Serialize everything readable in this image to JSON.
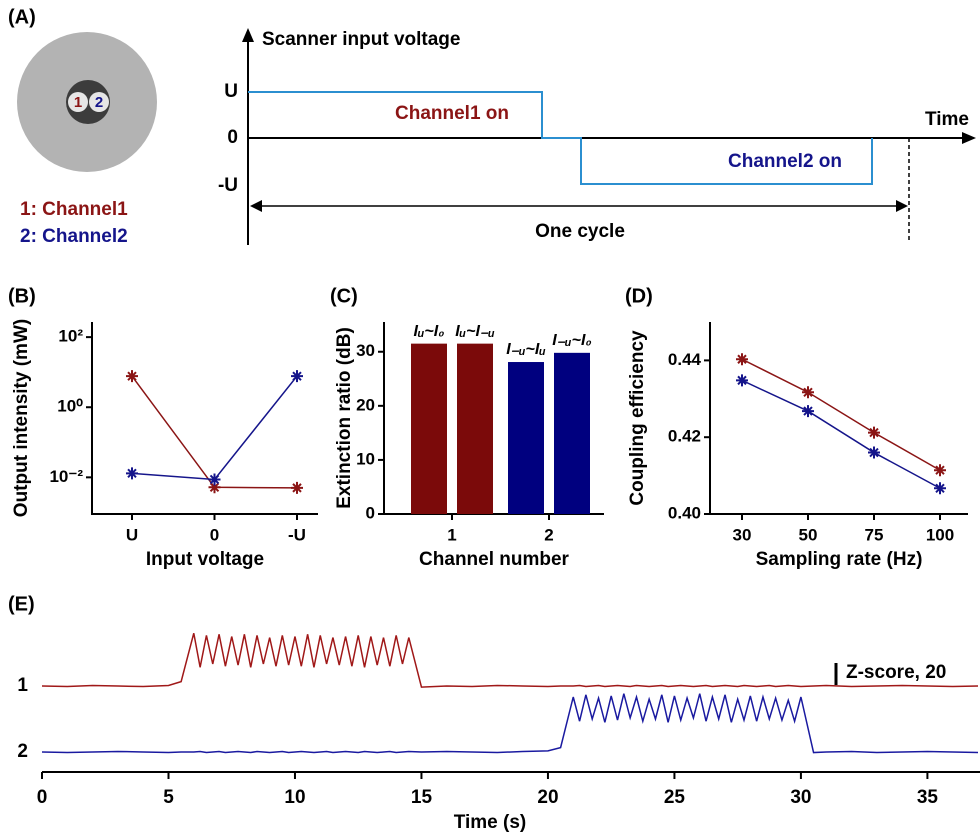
{
  "panel_a": {
    "panel_label": "(A)",
    "y_axis_label": "Scanner input voltage",
    "x_axis_label": "Time",
    "levels": [
      "U",
      "0",
      "-U"
    ],
    "segments": [
      "Channel1 on",
      "Channel2 on"
    ],
    "cycle_label": "One cycle",
    "fiber_cores": [
      "1",
      "2"
    ],
    "legend": [
      "1: Channel1",
      "2: Channel2"
    ]
  },
  "chart_data": [
    {
      "type": "line",
      "panel_label": "(B)",
      "ylabel": "Output intensity (mW)",
      "xlabel": "Input voltage",
      "categories": [
        "U",
        "0",
        "-U"
      ],
      "log_y": true,
      "ylim": [
        0.0009,
        270
      ],
      "yticks": [
        {
          "value": 100,
          "label": "10²"
        },
        {
          "value": 1,
          "label": "10⁰"
        },
        {
          "value": 0.01,
          "label": "10⁻²"
        }
      ],
      "series": [
        {
          "color": "#8b1515",
          "values": [
            7.7,
            0.0052,
            0.005
          ]
        },
        {
          "color": "#15158b",
          "values": [
            0.013,
            0.0087,
            7.7
          ]
        }
      ]
    },
    {
      "type": "bar",
      "panel_label": "(C)",
      "ylabel": "Extinction ratio (dB)",
      "xlabel": "Channel number",
      "categories": [
        "1",
        "2"
      ],
      "colors": [
        "#7b0a0a",
        "#00007f"
      ],
      "bar_labels": [
        [
          "Iᵤ~I₀",
          "Iᵤ~I₋ᵤ"
        ],
        [
          "I₋ᵤ~Iᵤ",
          "I₋ᵤ~I₀"
        ]
      ],
      "values": [
        [
          31.5,
          31.5
        ],
        [
          28.1,
          29.8
        ]
      ],
      "ylim": [
        0,
        35.5
      ],
      "yticks": [
        0,
        10,
        20,
        30
      ]
    },
    {
      "type": "line",
      "panel_label": "(D)",
      "ylabel": "Coupling efficiency",
      "xlabel": "Sampling rate (Hz)",
      "categories": [
        "30",
        "50",
        "75",
        "100"
      ],
      "ylim": [
        0.4,
        0.45
      ],
      "yticks": [
        {
          "value": 0.4,
          "label": "0.40"
        },
        0.42,
        0.44
      ],
      "series": [
        {
          "color": "#8b1515",
          "values": [
            0.4403,
            0.4317,
            0.4212,
            0.4114
          ]
        },
        {
          "color": "#15158b",
          "values": [
            0.4348,
            0.4268,
            0.416,
            0.4067
          ]
        }
      ]
    },
    {
      "type": "trace",
      "panel_label": "(E)",
      "xlabel": "Time (s)",
      "xlim": [
        0,
        37
      ],
      "xticks": [
        0,
        5,
        10,
        15,
        20,
        25,
        30,
        35
      ],
      "scale_bar": {
        "value": 20,
        "label": "Z-score, 20"
      },
      "x": [
        0,
        1,
        2,
        3,
        4,
        5,
        5.5,
        6,
        6.25,
        6.5,
        6.75,
        7,
        7.25,
        7.5,
        7.75,
        8,
        8.25,
        8.5,
        8.75,
        9,
        9.25,
        9.5,
        9.75,
        10,
        10.25,
        10.5,
        10.75,
        11,
        11.25,
        11.5,
        11.75,
        12,
        12.25,
        12.5,
        12.75,
        13,
        13.25,
        13.5,
        13.75,
        14,
        14.25,
        14.5,
        15,
        16,
        17,
        18,
        19,
        20,
        20.5,
        21,
        21.25,
        21.5,
        21.75,
        22,
        22.25,
        22.5,
        22.75,
        23,
        23.25,
        23.5,
        23.75,
        24,
        24.25,
        24.5,
        24.75,
        25,
        25.25,
        25.5,
        25.75,
        26,
        26.25,
        26.5,
        26.75,
        27,
        27.25,
        27.5,
        27.75,
        28,
        28.25,
        28.5,
        28.75,
        29,
        29.25,
        29.5,
        29.75,
        30,
        30.5,
        31,
        32,
        33,
        34,
        35,
        36,
        37
      ],
      "series": [
        {
          "name": "1",
          "color": "#a01818",
          "values": [
            0,
            -0.5,
            0.5,
            0,
            -0.5,
            0.5,
            4,
            48,
            17,
            46,
            20,
            47,
            18,
            45,
            19,
            47,
            17,
            46,
            20,
            44,
            18,
            46,
            19,
            45,
            18,
            47,
            17,
            46,
            20,
            44,
            19,
            45,
            18,
            46,
            17,
            45,
            19,
            44,
            18,
            46,
            20,
            44,
            -1,
            0,
            -0.5,
            0.5,
            0,
            -0.5,
            0,
            0,
            0.5,
            -0.5,
            0,
            0.5,
            -0.5,
            0,
            0.5,
            0,
            -0.5,
            0.5,
            0,
            -0.5,
            0,
            0.5,
            -0.5,
            0,
            0.5,
            0,
            -0.5,
            0,
            0.5,
            -0.5,
            0,
            0.5,
            0,
            -0.5,
            0.5,
            0,
            -0.5,
            0,
            0.5,
            -0.5,
            0,
            0.5,
            0,
            -0.5,
            0,
            0.5,
            -0.5,
            0,
            0.5,
            0,
            -0.5,
            0
          ]
        },
        {
          "name": "2",
          "color": "#1a1aa0",
          "values": [
            0,
            -0.5,
            0,
            0.5,
            0,
            -0.5,
            0,
            0,
            0.5,
            -0.5,
            0,
            0.5,
            -0.5,
            0,
            0.5,
            0,
            -0.5,
            0.5,
            0,
            -0.5,
            0,
            0.5,
            -0.5,
            0,
            0.5,
            0,
            -0.5,
            0,
            0.5,
            -0.5,
            0,
            0.5,
            0,
            -0.5,
            0.5,
            0,
            -0.5,
            0,
            0.5,
            -0.5,
            0,
            0.5,
            0,
            0.5,
            0,
            -0.5,
            0.5,
            1,
            4,
            50,
            28,
            52,
            30,
            49,
            27,
            51,
            29,
            53,
            31,
            50,
            28,
            48,
            30,
            52,
            27,
            51,
            29,
            49,
            31,
            53,
            28,
            50,
            30,
            52,
            27,
            48,
            29,
            51,
            28,
            50,
            30,
            49,
            29,
            47,
            28,
            50,
            -0.5,
            0,
            0.5,
            -0.5,
            0,
            0.5,
            0,
            -0.5
          ]
        }
      ]
    }
  ]
}
